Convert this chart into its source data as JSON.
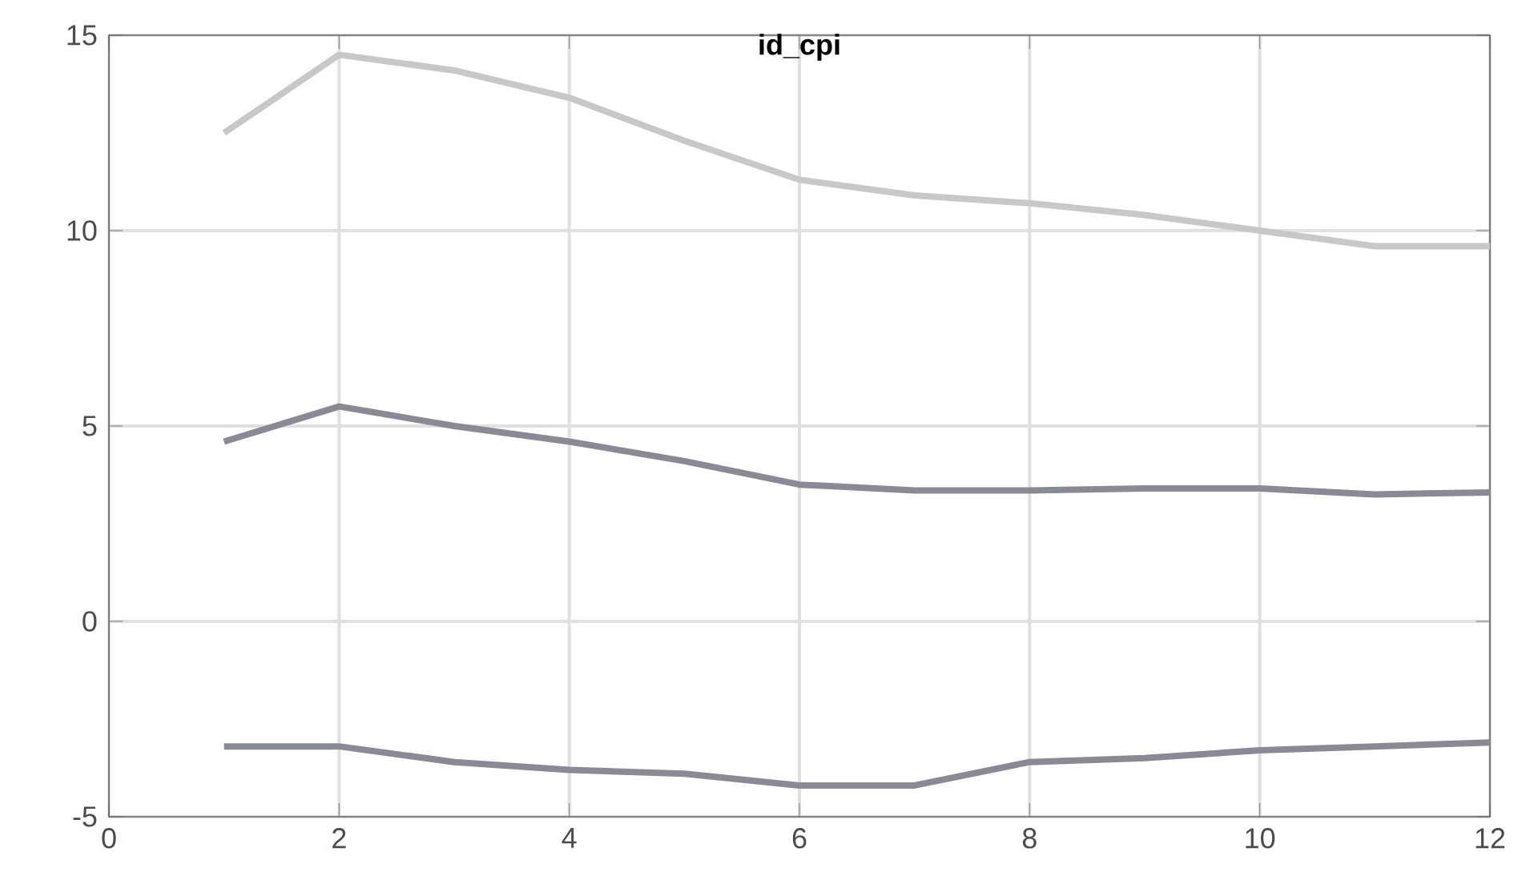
{
  "chart_data": {
    "type": "line",
    "title": "id_cpi",
    "x": [
      1,
      2,
      3,
      4,
      5,
      6,
      7,
      8,
      9,
      10,
      11,
      12
    ],
    "series": [
      {
        "color": "#c8c8c8",
        "values": [
          12.5,
          14.5,
          14.1,
          13.4,
          12.3,
          11.3,
          10.9,
          10.7,
          10.4,
          10.0,
          9.6,
          9.6
        ]
      },
      {
        "color": "#8a8a94",
        "values": [
          4.6,
          5.5,
          5.0,
          4.6,
          4.1,
          3.5,
          3.35,
          3.35,
          3.4,
          3.4,
          3.25,
          3.3
        ]
      },
      {
        "color": "#8a8a94",
        "values": [
          -3.2,
          -3.2,
          -3.6,
          -3.8,
          -3.9,
          -4.2,
          -4.2,
          -3.6,
          -3.5,
          -3.3,
          -3.2,
          -3.1
        ]
      }
    ],
    "xlim": [
      0,
      12
    ],
    "ylim": [
      -5,
      15
    ],
    "xticks": [
      0,
      2,
      4,
      6,
      8,
      10,
      12
    ],
    "yticks": [
      -5,
      0,
      5,
      10,
      15
    ],
    "grid": true,
    "marker": "none",
    "line_style": "solid"
  }
}
